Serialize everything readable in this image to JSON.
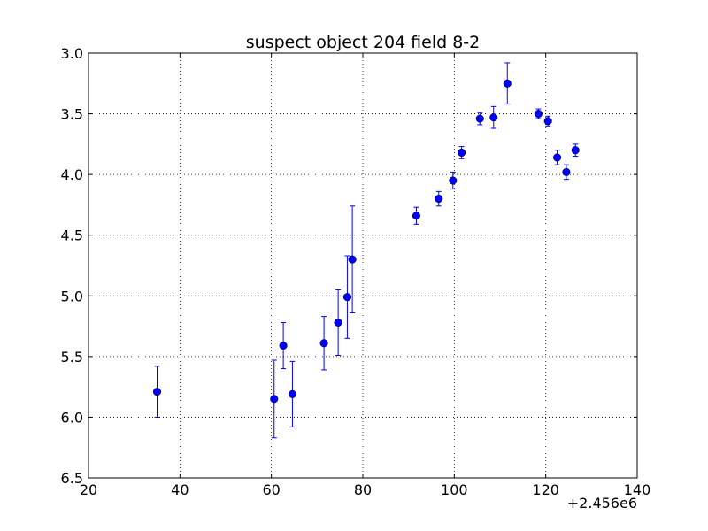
{
  "chart_data": {
    "type": "scatter",
    "title": "suspect object 204 field 8-2",
    "xlabel": "",
    "ylabel": "",
    "x_offset_label": "+2.456e6",
    "xlim": [
      20,
      140
    ],
    "ylim": [
      6.5,
      3.0
    ],
    "y_inverted": true,
    "grid": true,
    "x_ticks": [
      20,
      40,
      60,
      80,
      100,
      120,
      140
    ],
    "x_tick_labels": [
      "20",
      "40",
      "60",
      "80",
      "100",
      "120",
      "140"
    ],
    "y_ticks": [
      3.0,
      3.5,
      4.0,
      4.5,
      5.0,
      5.5,
      6.0,
      6.5
    ],
    "y_tick_labels": [
      "3.0",
      "3.5",
      "4.0",
      "4.5",
      "5.0",
      "5.5",
      "6.0",
      "6.5"
    ],
    "series": [
      {
        "color": "#0000ff",
        "marker": "circle",
        "points": [
          {
            "x": 35.0,
            "y": 5.79,
            "err": 0.21
          },
          {
            "x": 60.6,
            "y": 5.85,
            "err": 0.32
          },
          {
            "x": 62.6,
            "y": 5.41,
            "err": 0.19
          },
          {
            "x": 64.6,
            "y": 5.81,
            "err": 0.27
          },
          {
            "x": 71.5,
            "y": 5.39,
            "err": 0.22
          },
          {
            "x": 74.6,
            "y": 5.22,
            "err": 0.27
          },
          {
            "x": 76.6,
            "y": 5.01,
            "err": 0.34
          },
          {
            "x": 77.7,
            "y": 4.7,
            "err": 0.44
          },
          {
            "x": 91.7,
            "y": 4.34,
            "err": 0.07
          },
          {
            "x": 96.6,
            "y": 4.2,
            "err": 0.06
          },
          {
            "x": 99.7,
            "y": 4.05,
            "err": 0.07
          },
          {
            "x": 101.6,
            "y": 3.82,
            "err": 0.05
          },
          {
            "x": 105.6,
            "y": 3.54,
            "err": 0.05
          },
          {
            "x": 108.6,
            "y": 3.53,
            "err": 0.09
          },
          {
            "x": 111.6,
            "y": 3.25,
            "err": 0.17
          },
          {
            "x": 118.4,
            "y": 3.5,
            "err": 0.04
          },
          {
            "x": 120.5,
            "y": 3.56,
            "err": 0.04
          },
          {
            "x": 122.5,
            "y": 3.86,
            "err": 0.06
          },
          {
            "x": 124.5,
            "y": 3.98,
            "err": 0.06
          },
          {
            "x": 126.5,
            "y": 3.8,
            "err": 0.05
          }
        ]
      }
    ]
  }
}
